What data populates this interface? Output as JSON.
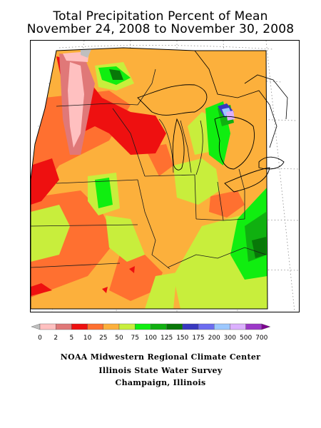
{
  "title": {
    "line1": "Total Precipitation Percent of Mean",
    "line2": "November 24, 2008 to November 30, 2008"
  },
  "legend": {
    "labels": [
      "0",
      "2",
      "5",
      "10",
      "25",
      "50",
      "75",
      "100",
      "125",
      "150",
      "175",
      "200",
      "300",
      "500",
      "700"
    ],
    "colors": [
      "#bfbfbf",
      "#ffc0c0",
      "#e07878",
      "#ee1010",
      "#ff7030",
      "#fcb03c",
      "#c8ee3c",
      "#10ee10",
      "#10b010",
      "#087808",
      "#3838c0",
      "#6c6cf0",
      "#9cc8ff",
      "#dcb0ff",
      "#9c38c8",
      "#7c0090"
    ]
  },
  "credits": {
    "line1": "NOAA Midwestern Regional Climate Center",
    "line2": "Illinois State Water Survey",
    "line3": "Champaign, Illinois"
  }
}
